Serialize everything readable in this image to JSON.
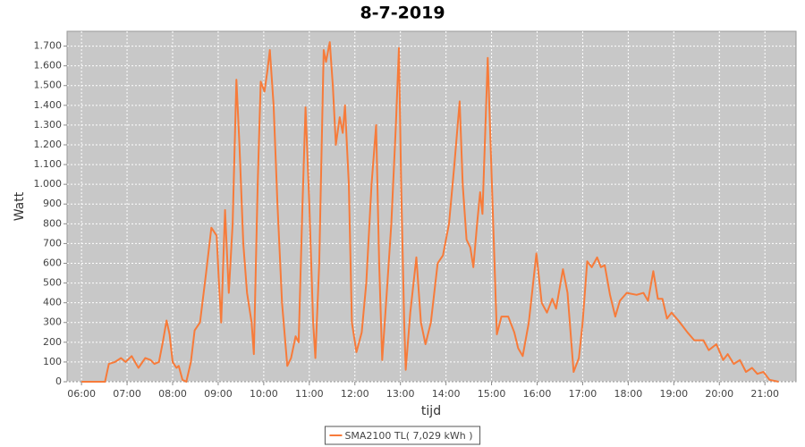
{
  "chart_data": {
    "type": "line",
    "title": "8-7-2019",
    "x_label": "tijd",
    "y_label": "Watt",
    "x": [
      "06:00",
      "06:31",
      "06:36",
      "06:44",
      "06:52",
      "06:58",
      "07:06",
      "07:09",
      "07:15",
      "07:24",
      "07:31",
      "07:36",
      "07:42",
      "07:47",
      "07:52",
      "07:56",
      "08:00",
      "08:05",
      "08:08",
      "08:13",
      "08:18",
      "08:24",
      "08:29",
      "08:36",
      "08:44",
      "08:51",
      "08:58",
      "09:01",
      "09:04",
      "09:09",
      "09:14",
      "09:19",
      "09:24",
      "09:28",
      "09:33",
      "09:38",
      "09:44",
      "09:47",
      "09:52",
      "09:56",
      "10:01",
      "10:05",
      "10:08",
      "10:13",
      "10:18",
      "10:24",
      "10:31",
      "10:36",
      "10:42",
      "10:46",
      "10:51",
      "10:55",
      "11:00",
      "11:05",
      "11:08",
      "11:13",
      "11:19",
      "11:22",
      "11:27",
      "11:31",
      "11:35",
      "11:40",
      "11:44",
      "11:47",
      "11:52",
      "11:56",
      "12:02",
      "12:09",
      "12:15",
      "12:22",
      "12:28",
      "12:32",
      "12:36",
      "12:42",
      "12:48",
      "12:54",
      "12:58",
      "13:01",
      "13:05",
      "13:07",
      "13:13",
      "13:21",
      "13:27",
      "13:33",
      "13:40",
      "13:49",
      "13:56",
      "14:04",
      "14:11",
      "14:18",
      "14:22",
      "14:27",
      "14:32",
      "14:36",
      "14:41",
      "14:45",
      "14:48",
      "14:55",
      "15:07",
      "15:13",
      "15:22",
      "15:30",
      "15:35",
      "15:41",
      "15:49",
      "15:59",
      "16:06",
      "16:13",
      "16:20",
      "16:25",
      "16:34",
      "16:40",
      "16:48",
      "16:55",
      "17:00",
      "17:06",
      "17:12",
      "17:19",
      "17:24",
      "17:29",
      "17:36",
      "17:43",
      "17:49",
      "17:58",
      "18:11",
      "18:20",
      "18:26",
      "18:33",
      "18:39",
      "18:45",
      "18:51",
      "18:57",
      "19:06",
      "19:18",
      "19:27",
      "19:39",
      "19:46",
      "19:56",
      "20:05",
      "20:11",
      "20:19",
      "20:27",
      "20:35",
      "20:43",
      "20:50",
      "20:58",
      "21:06",
      "21:18"
    ],
    "series": [
      {
        "name": "SMA2100 TL( 7,029 kWh )",
        "color": "#f77b3a",
        "values": [
          0,
          0,
          90,
          100,
          120,
          100,
          130,
          110,
          70,
          120,
          110,
          90,
          100,
          200,
          310,
          240,
          100,
          70,
          80,
          10,
          0,
          100,
          260,
          300,
          550,
          780,
          740,
          500,
          300,
          870,
          450,
          800,
          1530,
          1200,
          700,
          450,
          300,
          140,
          1000,
          1520,
          1470,
          1580,
          1680,
          1400,
          900,
          400,
          80,
          120,
          230,
          200,
          900,
          1390,
          900,
          300,
          120,
          600,
          1680,
          1620,
          1720,
          1500,
          1200,
          1340,
          1260,
          1400,
          1000,
          300,
          150,
          250,
          500,
          1000,
          1300,
          600,
          110,
          450,
          800,
          1300,
          1690,
          1000,
          300,
          60,
          350,
          630,
          300,
          190,
          300,
          600,
          640,
          800,
          1100,
          1420,
          1000,
          720,
          680,
          580,
          800,
          960,
          850,
          1640,
          240,
          330,
          330,
          250,
          170,
          130,
          300,
          650,
          400,
          350,
          420,
          370,
          570,
          450,
          50,
          120,
          300,
          610,
          580,
          630,
          580,
          590,
          440,
          330,
          410,
          450,
          440,
          450,
          410,
          560,
          420,
          420,
          320,
          350,
          310,
          250,
          210,
          210,
          160,
          190,
          110,
          140,
          90,
          110,
          50,
          70,
          40,
          50,
          10,
          0
        ]
      }
    ],
    "xlim": [
      "05:41",
      "21:41"
    ],
    "xticks": [
      "06:00",
      "07:00",
      "08:00",
      "09:00",
      "10:00",
      "11:00",
      "12:00",
      "13:00",
      "14:00",
      "15:00",
      "16:00",
      "17:00",
      "18:00",
      "19:00",
      "20:00",
      "21:00"
    ],
    "ylim": [
      0,
      1775
    ],
    "yticks": [
      0,
      100,
      200,
      300,
      400,
      500,
      600,
      700,
      800,
      900,
      {
        "value": 1000,
        "label": "1.000"
      },
      {
        "value": 1100,
        "label": "1.100"
      },
      {
        "value": 1200,
        "label": "1.200"
      },
      {
        "value": 1300,
        "label": "1.300"
      },
      {
        "value": 1400,
        "label": "1.400"
      },
      {
        "value": 1500,
        "label": "1.500"
      },
      {
        "value": 1600,
        "label": "1.600"
      },
      {
        "value": 1700,
        "label": "1.700"
      }
    ],
    "grid": true,
    "legend": "bottom",
    "plot_background": "#c8c8c8"
  }
}
